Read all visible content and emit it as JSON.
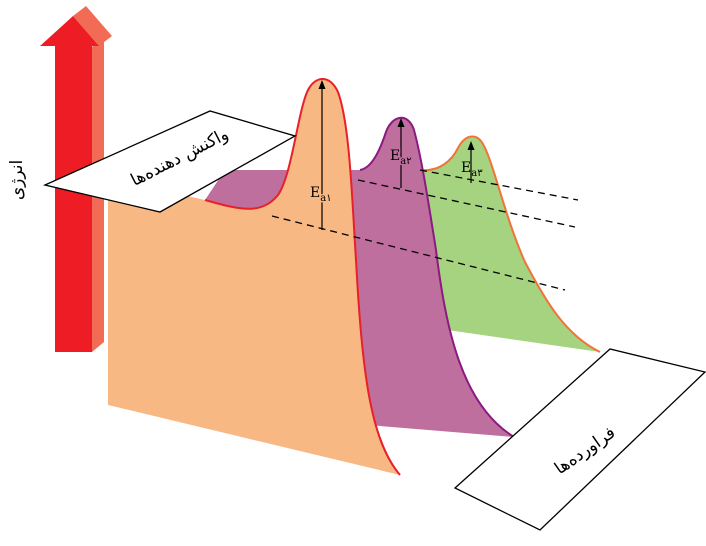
{
  "axis": {
    "label": "انرژی"
  },
  "labels": {
    "reactants": "واکنش دهنده‌ها",
    "products": "فراورده‌ها"
  },
  "activation_energies": [
    {
      "main": "E",
      "sub": "a۱"
    },
    {
      "main": "E",
      "sub": "a۲"
    },
    {
      "main": "E",
      "sub": "a۳"
    }
  ],
  "colors": {
    "arrow_front": "#ee1c25",
    "arrow_side": "#f26b55",
    "curve1_fill": "#f8b884",
    "curve1_line": "#e8202a",
    "curve2_fill": "#be6f9d",
    "curve2_line": "#8b1a82",
    "curve3_fill": "#a6d37f",
    "curve3_line": "#f0743a"
  }
}
